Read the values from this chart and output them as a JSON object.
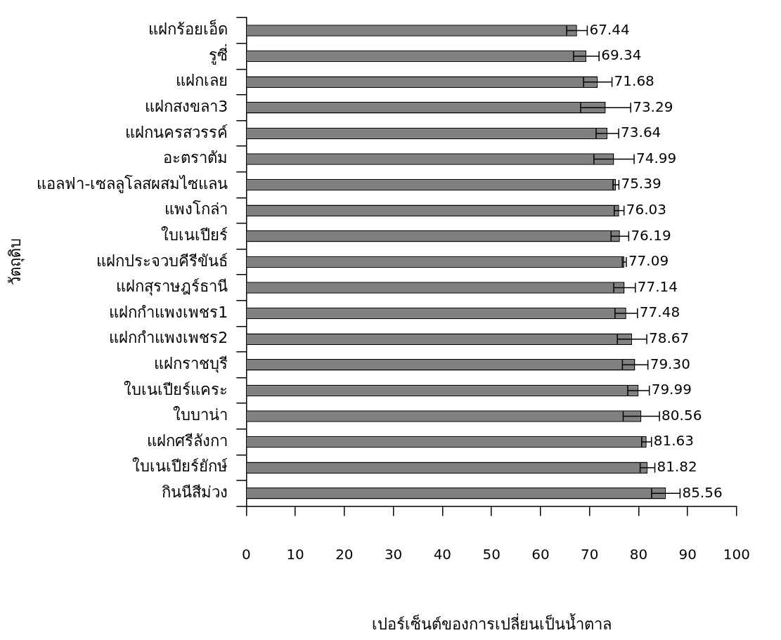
{
  "chart_data": {
    "type": "bar",
    "orientation": "horizontal",
    "xlabel": "เปอร์เซ็นต์ของการเปลี่ยนเป็นน้ำตาล",
    "ylabel": "วัตถุดิบ",
    "categories": [
      "แฝกร้อยเอ็ด",
      "รูซี่",
      "แฝกเลย",
      "แฝกสงขลา3",
      "แฝกนครสวรรค์",
      "อะตราตัม",
      "แอลฟา-เซลลูโลสผสมไซแลน",
      "แพงโกล่า",
      "ใบเนเปียร์",
      "แฝกประจวบคีรีขันธ์",
      "แฝกสุราษฎร์ธานี",
      "แฝกกำแพงเพชร1",
      "แฝกกำแพงเพชร2",
      "แฝกราชบุรี",
      "ใบเนเปียร์แคระ",
      "ใบบาน่า",
      "แฝกศรีลังกา",
      "ใบเนเปียร์ยักษ์",
      "กินนีสีม่วง"
    ],
    "values": [
      67.44,
      69.34,
      71.68,
      73.29,
      73.64,
      74.99,
      75.39,
      76.03,
      76.19,
      77.09,
      77.14,
      77.48,
      78.67,
      79.3,
      79.99,
      80.56,
      81.63,
      81.82,
      85.56
    ],
    "errors": [
      2.1,
      2.6,
      2.9,
      5.1,
      2.3,
      4.1,
      0.6,
      1.0,
      1.8,
      0.4,
      2.2,
      2.3,
      3.0,
      2.6,
      2.2,
      3.7,
      1.0,
      1.5,
      2.9
    ],
    "value_labels": [
      "67.44",
      "69.34",
      "71.68",
      "73.29",
      "73.64",
      "74.99",
      "75.39",
      "76.03",
      "76.19",
      "77.09",
      "77.14",
      "77.48",
      "78.67",
      "79.30",
      "79.99",
      "80.56",
      "81.63",
      "81.82",
      "85.56"
    ],
    "color": "#808080",
    "xlim": [
      0,
      100
    ],
    "xticks": [
      0,
      10,
      20,
      30,
      40,
      50,
      60,
      70,
      80,
      90,
      100
    ],
    "grid": false,
    "legend": false
  }
}
